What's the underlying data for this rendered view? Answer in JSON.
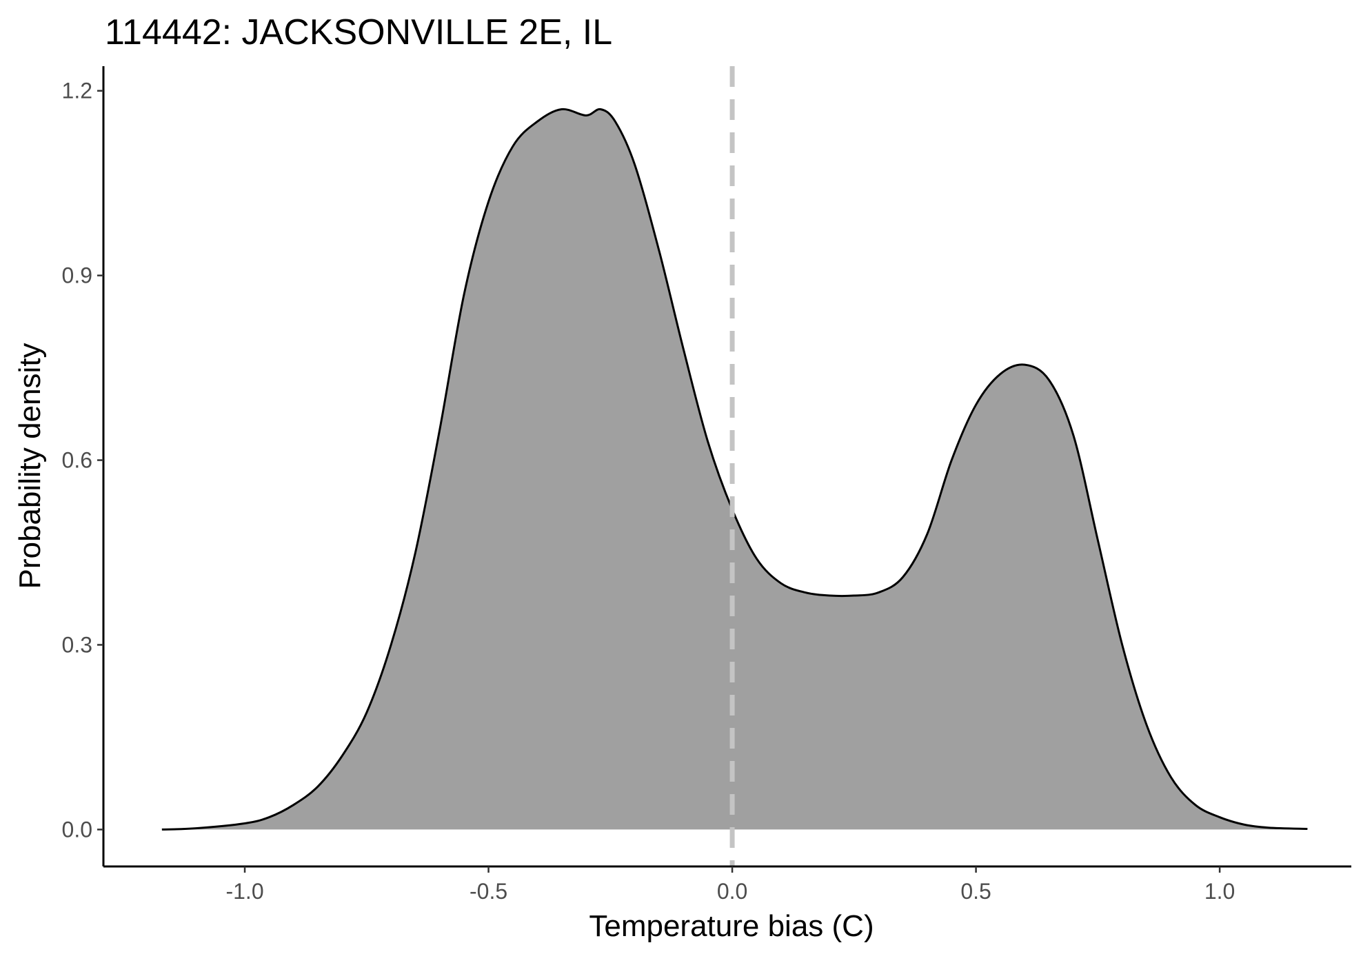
{
  "chart_data": {
    "type": "area",
    "title": "114442: JACKSONVILLE 2E, IL",
    "xlabel": "Temperature bias (C)",
    "ylabel": "Probability density",
    "xlim": [
      -1.29,
      1.27
    ],
    "ylim": [
      -0.06,
      1.24
    ],
    "x_ticks": [
      -1.0,
      -0.5,
      0.0,
      0.5,
      1.0
    ],
    "x_tick_labels": [
      "-1.0",
      "-0.5",
      "0.0",
      "0.5",
      "1.0"
    ],
    "y_ticks": [
      0.0,
      0.3,
      0.6,
      0.9,
      1.2
    ],
    "y_tick_labels": [
      "0.0",
      "0.3",
      "0.6",
      "0.9",
      "1.2"
    ],
    "grid": false,
    "legend": "none",
    "fill_color": "#a0a0a0",
    "line_color": "#000000",
    "reference_line": {
      "x": 0.0,
      "style": "dashed",
      "color": "#c4c4c4"
    },
    "x": [
      -1.17,
      -1.1,
      -1.0,
      -0.95,
      -0.9,
      -0.85,
      -0.8,
      -0.75,
      -0.7,
      -0.65,
      -0.6,
      -0.55,
      -0.5,
      -0.45,
      -0.4,
      -0.35,
      -0.3,
      -0.27,
      -0.24,
      -0.2,
      -0.15,
      -0.1,
      -0.05,
      0.0,
      0.05,
      0.1,
      0.15,
      0.2,
      0.25,
      0.3,
      0.35,
      0.4,
      0.45,
      0.5,
      0.55,
      0.6,
      0.65,
      0.7,
      0.75,
      0.8,
      0.85,
      0.9,
      0.95,
      1.0,
      1.05,
      1.1,
      1.18
    ],
    "values": [
      0.0,
      0.002,
      0.01,
      0.02,
      0.04,
      0.07,
      0.12,
      0.19,
      0.3,
      0.45,
      0.65,
      0.87,
      1.02,
      1.11,
      1.15,
      1.17,
      1.16,
      1.17,
      1.15,
      1.08,
      0.94,
      0.78,
      0.63,
      0.52,
      0.44,
      0.4,
      0.385,
      0.38,
      0.38,
      0.385,
      0.41,
      0.48,
      0.6,
      0.69,
      0.74,
      0.755,
      0.73,
      0.64,
      0.47,
      0.3,
      0.17,
      0.085,
      0.04,
      0.02,
      0.008,
      0.003,
      0.001
    ]
  }
}
